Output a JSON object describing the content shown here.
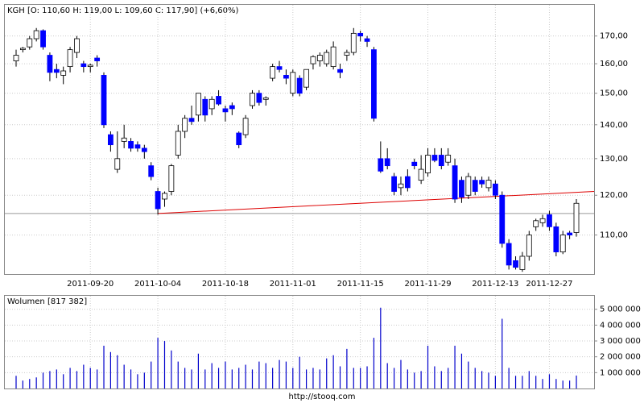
{
  "chart_data": {
    "type": "candlestick",
    "title": "KGH [O: 110,60  H: 119,00  L: 109,60  C: 117,90] (+6,60%)",
    "source": "http://stooq.com",
    "log_scale": true,
    "grid": true,
    "up_color": "#ffffff",
    "down_color": "#0000ff",
    "wick_color": "#000000",
    "categories": [
      null,
      null,
      null,
      null,
      null,
      null,
      null,
      null,
      null,
      null,
      null,
      "2011-09-20",
      null,
      null,
      null,
      null,
      null,
      null,
      null,
      null,
      null,
      "2011-10-04",
      null,
      null,
      null,
      null,
      null,
      null,
      null,
      null,
      null,
      "2011-10-18",
      null,
      null,
      null,
      null,
      null,
      null,
      null,
      null,
      null,
      "2011-11-01",
      null,
      null,
      null,
      null,
      null,
      null,
      null,
      null,
      null,
      "2011-11-15",
      null,
      null,
      null,
      null,
      null,
      null,
      null,
      null,
      null,
      "2011-11-29",
      null,
      null,
      null,
      null,
      null,
      null,
      null,
      null,
      null,
      "2011-12-13",
      null,
      null,
      null,
      null,
      null,
      null,
      null,
      "2011-12-27",
      null,
      null,
      null,
      null
    ],
    "open": [
      161,
      165,
      166,
      169,
      172,
      163,
      158,
      156,
      159,
      164,
      160,
      159,
      162,
      156,
      137,
      127,
      135,
      135,
      134,
      133,
      128,
      121,
      119,
      121,
      131,
      138,
      142,
      143,
      148,
      145,
      149,
      145,
      146,
      137.5,
      137,
      146,
      150,
      148,
      155,
      159,
      156,
      150,
      155,
      152,
      160,
      161,
      160,
      159,
      158,
      163,
      164,
      171,
      169,
      165,
      130,
      130,
      125,
      122,
      125,
      129,
      124,
      126,
      131,
      131,
      129,
      128,
      124,
      120,
      124,
      124,
      122,
      123,
      120,
      108,
      104,
      102,
      105,
      112,
      113,
      115,
      112,
      106,
      110.5,
      110.6
    ],
    "high": [
      165,
      166,
      170,
      173,
      172.5,
      164,
      160,
      159,
      166,
      170,
      161,
      160,
      163,
      157,
      138,
      138,
      140,
      136,
      135,
      134,
      129,
      122,
      121,
      128.5,
      140,
      143,
      146,
      150,
      149,
      149,
      151,
      146,
      147,
      138,
      143,
      151,
      151,
      149,
      160,
      161,
      158,
      158,
      156,
      158,
      163,
      164,
      165,
      168,
      160,
      165,
      173,
      172,
      170,
      166,
      135,
      133,
      126,
      125,
      127,
      130,
      131,
      133,
      133,
      133,
      133,
      130,
      125,
      126,
      125,
      125,
      125,
      124,
      121,
      109,
      105,
      106,
      111,
      114,
      115,
      116,
      113,
      111,
      111,
      119
    ],
    "low": [
      159,
      164,
      165,
      168,
      165,
      154,
      155,
      153,
      157,
      162,
      157,
      157,
      159,
      139,
      132,
      126,
      133,
      132,
      132,
      130,
      124,
      115,
      117,
      120,
      130,
      136,
      140,
      141,
      141,
      143,
      146,
      141,
      143,
      133,
      136,
      145,
      146,
      146,
      154,
      157,
      153,
      149,
      149,
      151,
      158,
      159,
      159,
      158,
      155,
      161,
      163,
      168,
      166,
      141,
      126,
      127,
      120,
      120,
      121,
      127,
      123,
      125,
      129,
      127,
      128,
      118,
      118,
      119,
      120,
      122,
      121,
      119,
      107,
      102,
      102,
      101.5,
      104,
      111,
      112,
      111,
      105,
      105.5,
      109,
      109.6
    ],
    "close": [
      163,
      165.5,
      169,
      172,
      166,
      157,
      157,
      157.5,
      165,
      169,
      159,
      159.5,
      161,
      140,
      134,
      130,
      136,
      133,
      133,
      132,
      125,
      116.5,
      120.5,
      128,
      138,
      142,
      141,
      150,
      143,
      148,
      146.5,
      144,
      145,
      134,
      142,
      150,
      147,
      148.5,
      159,
      158,
      155,
      157,
      150,
      158,
      162.5,
      163,
      164,
      166,
      157,
      164,
      171,
      170,
      168,
      142,
      126.5,
      128,
      121,
      123,
      122,
      128,
      127,
      131,
      129.5,
      128,
      131,
      119,
      119.5,
      125,
      121,
      123,
      124,
      120,
      108,
      103,
      102.5,
      105,
      110,
      113.5,
      114,
      112,
      106,
      110,
      110,
      117.9
    ],
    "ylim": [
      101,
      182
    ],
    "yticks": [
      {
        "value": 110,
        "label": "110,00"
      },
      {
        "value": 120,
        "label": "120,00"
      },
      {
        "value": 130,
        "label": "130,00"
      },
      {
        "value": 140,
        "label": "140,00"
      },
      {
        "value": 150,
        "label": "150,00"
      },
      {
        "value": 160,
        "label": "160,00"
      },
      {
        "value": 170,
        "label": "170,00"
      }
    ],
    "level_line": {
      "value": 115.3,
      "color": "#999999"
    },
    "trend_line": {
      "from": "2011-10-04",
      "values": [
        115.3,
        121
      ],
      "color": "#dd0000"
    },
    "volume_label": "Wolumen [817 382]",
    "volume_color": "#0000cc",
    "volume": [
      800000,
      500000,
      600000,
      700000,
      1000000,
      1100000,
      1200000,
      900000,
      1300000,
      1100000,
      1500000,
      1300000,
      1200000,
      2700000,
      2300000,
      2100000,
      1500000,
      1200000,
      900000,
      1000000,
      1700000,
      3200000,
      3000000,
      2400000,
      1700000,
      1300000,
      1200000,
      2200000,
      1200000,
      1600000,
      1300000,
      1700000,
      1200000,
      1300000,
      1500000,
      1200000,
      1700000,
      1600000,
      1300000,
      1800000,
      1700000,
      1300000,
      2000000,
      1200000,
      1300000,
      1200000,
      1900000,
      2100000,
      1400000,
      2500000,
      1300000,
      1300000,
      1400000,
      3200000,
      5100000,
      1600000,
      1300000,
      1800000,
      1200000,
      1000000,
      1100000,
      2700000,
      1400000,
      1100000,
      1300000,
      2700000,
      2200000,
      1700000,
      1300000,
      1100000,
      1000000,
      800000,
      4400000,
      1300000,
      800000,
      800000,
      1100000,
      800000,
      600000,
      900000,
      600000,
      500000,
      500000,
      817382
    ],
    "volume_ylim": [
      0,
      5850000
    ],
    "volume_yticks": [
      {
        "value": 1000000,
        "label": "1 000 000"
      },
      {
        "value": 2000000,
        "label": "2 000 000"
      },
      {
        "value": 3000000,
        "label": "3 000 000"
      },
      {
        "value": 4000000,
        "label": "4 000 000"
      },
      {
        "value": 5000000,
        "label": "5 000 000"
      }
    ]
  }
}
